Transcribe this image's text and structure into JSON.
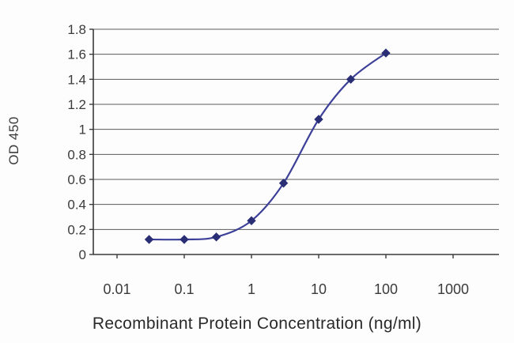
{
  "chart_data": {
    "type": "line",
    "title": "",
    "xlabel": "Recombinant Protein Concentration (ng/ml)",
    "ylabel": "OD 450",
    "x_scale": "log",
    "x_ticks": [
      "0.01",
      "0.1",
      "1",
      "10",
      "100",
      "1000"
    ],
    "y_ticks": [
      "0",
      "0.2",
      "0.4",
      "0.6",
      "0.8",
      "1",
      "1.2",
      "1.4",
      "1.6",
      "1.8"
    ],
    "xlim": [
      0.004,
      3000
    ],
    "ylim": [
      0,
      1.8
    ],
    "grid": "horizontal",
    "legend": "none",
    "series": [
      {
        "name": "OD 450",
        "marker": "diamond",
        "line_style": "smooth",
        "x": [
          0.03,
          0.1,
          0.3,
          1,
          3,
          10,
          30,
          100
        ],
        "y": [
          0.12,
          0.12,
          0.14,
          0.27,
          0.57,
          1.08,
          1.4,
          1.61
        ]
      }
    ]
  },
  "colors": {
    "line": "#3c4099",
    "marker": "#2a2e75",
    "grid": "#5a5a5a",
    "axis": "#3a3a3a",
    "tick_text": "#3b3b3b",
    "title_text": "#2a2a2a",
    "background": "#fdfdfd"
  }
}
